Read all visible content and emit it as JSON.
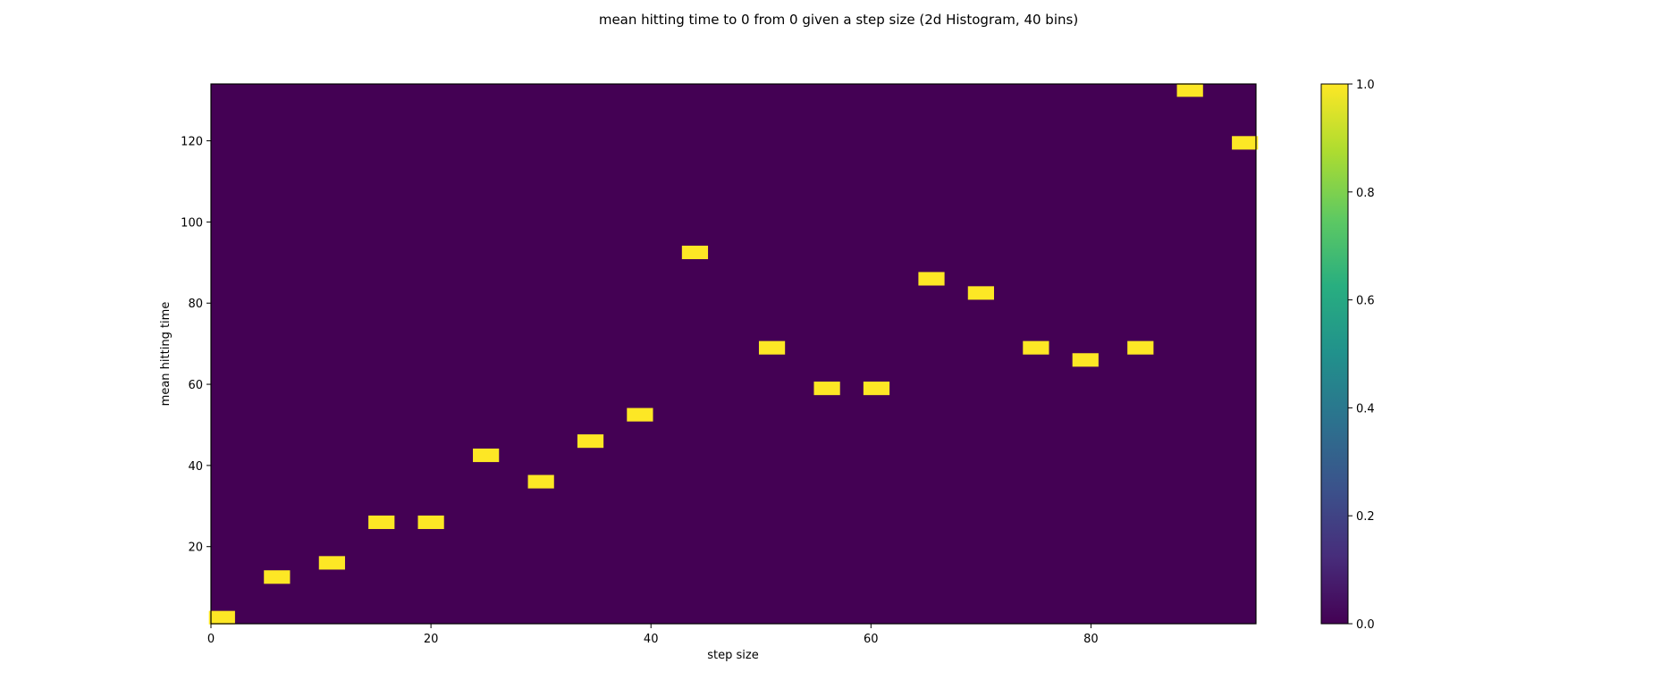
{
  "chart_data": {
    "type": "heatmap",
    "title": "mean hitting time to 0 from 0 given a step size (2d Histogram, 40 bins)",
    "xlabel": "step size",
    "ylabel": "mean hitting time",
    "xlim": [
      0,
      95
    ],
    "ylim": [
      1,
      134
    ],
    "bins": 40,
    "x_ticks": [
      0,
      20,
      40,
      60,
      80
    ],
    "y_ticks": [
      20,
      40,
      60,
      80,
      100,
      120
    ],
    "colorbar": {
      "range": [
        0,
        1
      ],
      "ticks": [
        "0.0",
        "0.2",
        "0.4",
        "0.6",
        "0.8",
        "1.0"
      ],
      "colormap": "viridis"
    },
    "background_color": "#440154",
    "cell_color": "#fde725",
    "cells": [
      {
        "x": 1,
        "y": 2.5
      },
      {
        "x": 6,
        "y": 12.5
      },
      {
        "x": 11,
        "y": 16
      },
      {
        "x": 15.5,
        "y": 26
      },
      {
        "x": 20,
        "y": 26
      },
      {
        "x": 25,
        "y": 42.5
      },
      {
        "x": 30,
        "y": 36
      },
      {
        "x": 34.5,
        "y": 46
      },
      {
        "x": 39,
        "y": 52.5
      },
      {
        "x": 44,
        "y": 92.5
      },
      {
        "x": 51,
        "y": 69
      },
      {
        "x": 56,
        "y": 59
      },
      {
        "x": 60.5,
        "y": 59
      },
      {
        "x": 65.5,
        "y": 86
      },
      {
        "x": 70,
        "y": 82.5
      },
      {
        "x": 75,
        "y": 69
      },
      {
        "x": 79.5,
        "y": 66
      },
      {
        "x": 84.5,
        "y": 69
      },
      {
        "x": 89,
        "y": 132.5
      },
      {
        "x": 94,
        "y": 119.5
      }
    ]
  }
}
